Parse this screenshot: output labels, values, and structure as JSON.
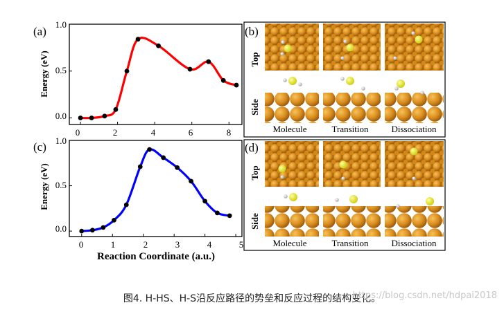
{
  "panels": {
    "a": {
      "label": "(a)"
    },
    "c": {
      "label": "(c)"
    },
    "b": {
      "label": "(b)",
      "row_top": "Top",
      "row_side": "Side",
      "cols": [
        "Molecule",
        "Transition",
        "Dissociation"
      ]
    },
    "d": {
      "label": "(d)",
      "row_top": "Top",
      "row_side": "Side",
      "cols": [
        "Molecule",
        "Transition",
        "Dissociation"
      ]
    }
  },
  "colors": {
    "curve_a": "#ff0000",
    "curve_c": "#0000ff",
    "marker": "#000000",
    "gold_dark": "#a0600e",
    "gold_light": "#f0a838",
    "sulfur": "#f0f020",
    "hydrogen": "#d0d0d0"
  },
  "caption": "图4. H-HS、H-S沿反应路径的势垒和反应过程的结构变化。",
  "watermark": "https://blog.csdn.net/hdpai2018",
  "chart_data": [
    {
      "type": "line",
      "panel": "(a)",
      "xlabel": "",
      "ylabel": "Energy (eV)",
      "xlim": [
        -0.6,
        8.7
      ],
      "ylim": [
        -0.07,
        1.0
      ],
      "xticks": [
        0,
        2,
        4,
        6,
        8
      ],
      "yticks": [
        0.0,
        0.5,
        1.0
      ],
      "ytick_labels": [
        "0.0",
        "0.5",
        "1.0"
      ],
      "series": [
        {
          "color": "#ff0000",
          "x": [
            0,
            0.6,
            1.3,
            1.9,
            2.5,
            3.1,
            4.2,
            5.9,
            6.9,
            7.7,
            8.4
          ],
          "y": [
            0.0,
            0.0,
            0.02,
            0.09,
            0.5,
            0.84,
            0.77,
            0.52,
            0.6,
            0.4,
            0.35
          ]
        }
      ]
    },
    {
      "type": "line",
      "panel": "(c)",
      "xlabel": "Reaction Coordinate (a.u.)",
      "ylabel": "Energy (eV)",
      "xlim": [
        -0.4,
        5.2
      ],
      "ylim": [
        -0.06,
        1.0
      ],
      "xticks": [
        0,
        1,
        2,
        3,
        4,
        5
      ],
      "yticks": [
        0.0,
        0.5,
        1.0
      ],
      "ytick_labels": [
        "0.0",
        "0.5",
        "1.0"
      ],
      "series": [
        {
          "color": "#0000ff",
          "x": [
            0,
            0.35,
            0.7,
            1.05,
            1.45,
            1.9,
            2.2,
            2.65,
            3.1,
            3.55,
            4.0,
            4.4,
            4.8
          ],
          "y": [
            0.0,
            0.01,
            0.04,
            0.12,
            0.29,
            0.71,
            0.9,
            0.81,
            0.7,
            0.55,
            0.33,
            0.2,
            0.17
          ]
        }
      ]
    }
  ]
}
